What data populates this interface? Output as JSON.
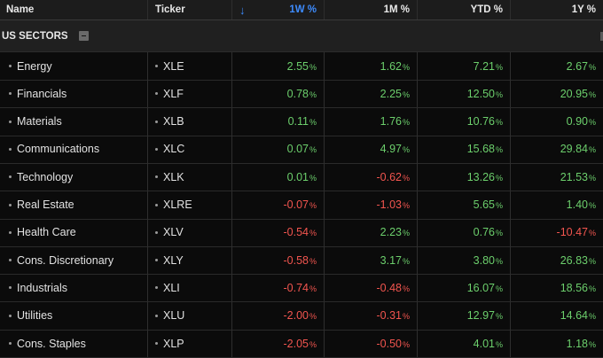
{
  "columns": {
    "name": "Name",
    "ticker": "Ticker",
    "w1": "1W %",
    "m1": "1M %",
    "ytd": "YTD %",
    "y1": "1Y %"
  },
  "sort_indicator": "↓",
  "section": {
    "label": "US SECTORS"
  },
  "colors": {
    "positive": "#6ccf6c",
    "negative": "#f2554f",
    "accent": "#3d8bfd"
  },
  "rows": [
    {
      "name": "Energy",
      "ticker": "XLE",
      "w1": "2.55",
      "m1": "1.62",
      "ytd": "7.21",
      "y1": "2.67"
    },
    {
      "name": "Financials",
      "ticker": "XLF",
      "w1": "0.78",
      "m1": "2.25",
      "ytd": "12.50",
      "y1": "20.95"
    },
    {
      "name": "Materials",
      "ticker": "XLB",
      "w1": "0.11",
      "m1": "1.76",
      "ytd": "10.76",
      "y1": "0.90"
    },
    {
      "name": "Communications",
      "ticker": "XLC",
      "w1": "0.07",
      "m1": "4.97",
      "ytd": "15.68",
      "y1": "29.84"
    },
    {
      "name": "Technology",
      "ticker": "XLK",
      "w1": "0.01",
      "m1": "-0.62",
      "ytd": "13.26",
      "y1": "21.53"
    },
    {
      "name": "Real Estate",
      "ticker": "XLRE",
      "w1": "-0.07",
      "m1": "-1.03",
      "ytd": "5.65",
      "y1": "1.40"
    },
    {
      "name": "Health Care",
      "ticker": "XLV",
      "w1": "-0.54",
      "m1": "2.23",
      "ytd": "0.76",
      "y1": "-10.47"
    },
    {
      "name": "Cons. Discretionary",
      "ticker": "XLY",
      "w1": "-0.58",
      "m1": "3.17",
      "ytd": "3.80",
      "y1": "26.83"
    },
    {
      "name": "Industrials",
      "ticker": "XLI",
      "w1": "-0.74",
      "m1": "-0.48",
      "ytd": "16.07",
      "y1": "18.56"
    },
    {
      "name": "Utilities",
      "ticker": "XLU",
      "w1": "-2.00",
      "m1": "-0.31",
      "ytd": "12.97",
      "y1": "14.64"
    },
    {
      "name": "Cons. Staples",
      "ticker": "XLP",
      "w1": "-2.05",
      "m1": "-0.50",
      "ytd": "4.01",
      "y1": "1.18"
    }
  ]
}
